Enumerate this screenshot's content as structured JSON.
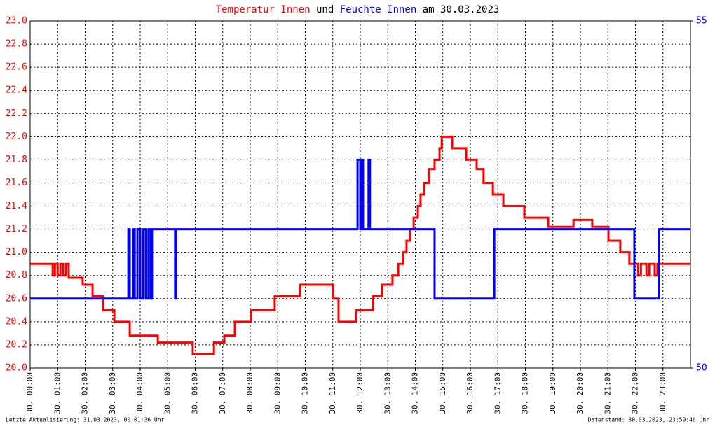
{
  "chart_data": {
    "type": "line",
    "title_connector": "und",
    "title_suffix": "am 30.03.2023",
    "footer_left": "Letzte Aktualisierung: 31.03.2023, 00:01:36 Uhr",
    "footer_right": "Datenstand: 30.03.2023, 23:59:46 Uhr",
    "grid": true,
    "xlim": [
      0,
      24
    ],
    "xticks": [
      {
        "value": 0,
        "label": "30. 00:00"
      },
      {
        "value": 1,
        "label": "30. 01:00"
      },
      {
        "value": 2,
        "label": "30. 02:00"
      },
      {
        "value": 3,
        "label": "30. 03:00"
      },
      {
        "value": 4,
        "label": "30. 04:00"
      },
      {
        "value": 5,
        "label": "30. 05:00"
      },
      {
        "value": 6,
        "label": "30. 06:00"
      },
      {
        "value": 7,
        "label": "30. 07:00"
      },
      {
        "value": 8,
        "label": "30. 08:00"
      },
      {
        "value": 9,
        "label": "30. 09:00"
      },
      {
        "value": 10,
        "label": "30. 10:00"
      },
      {
        "value": 11,
        "label": "30. 11:00"
      },
      {
        "value": 12,
        "label": "30. 12:00"
      },
      {
        "value": 13,
        "label": "30. 13:00"
      },
      {
        "value": 14,
        "label": "30. 14:00"
      },
      {
        "value": 15,
        "label": "30. 15:00"
      },
      {
        "value": 16,
        "label": "30. 16:00"
      },
      {
        "value": 17,
        "label": "30. 17:00"
      },
      {
        "value": 18,
        "label": "30. 18:00"
      },
      {
        "value": 19,
        "label": "30. 19:00"
      },
      {
        "value": 20,
        "label": "30. 20:00"
      },
      {
        "value": 21,
        "label": "30. 21:00"
      },
      {
        "value": 22,
        "label": "30. 22:00"
      },
      {
        "value": 23,
        "label": "30. 23:00"
      }
    ],
    "ylim": [
      20,
      23
    ],
    "yticks": [
      {
        "value": 20,
        "label": "20.0"
      },
      20.2,
      20.4,
      20.6,
      20.8,
      {
        "value": 21,
        "label": "21.0"
      },
      21.2,
      21.4,
      21.6,
      21.8,
      {
        "value": 22,
        "label": "22.0"
      },
      22.2,
      22.4,
      22.6,
      22.8,
      {
        "value": 23,
        "label": "23.0"
      }
    ],
    "y2lim": [
      50,
      55
    ],
    "y2ticks": [
      50,
      55
    ],
    "series": [
      {
        "name": "Temperatur Innen",
        "color": "#ff0000",
        "x": [
          0,
          0.82,
          0.82,
          0.9,
          0.9,
          1.0,
          1.0,
          1.1,
          1.1,
          1.2,
          1.2,
          1.3,
          1.3,
          1.4,
          1.4,
          1.91,
          1.91,
          2.27,
          2.27,
          2.65,
          2.65,
          3.06,
          3.06,
          3.62,
          3.62,
          4.64,
          4.64,
          5.91,
          5.91,
          6.68,
          6.68,
          7.06,
          7.06,
          7.44,
          7.44,
          8.03,
          8.03,
          8.89,
          8.89,
          9.81,
          9.81,
          11.01,
          11.01,
          11.21,
          11.21,
          11.85,
          11.85,
          12.46,
          12.46,
          12.79,
          12.79,
          13.17,
          13.17,
          13.38,
          13.38,
          13.55,
          13.55,
          13.68,
          13.68,
          13.81,
          13.81,
          13.94,
          13.94,
          14.09,
          14.09,
          14.19,
          14.19,
          14.32,
          14.32,
          14.5,
          14.5,
          14.7,
          14.7,
          14.88,
          14.88,
          14.96,
          14.96,
          15.34,
          15.34,
          15.85,
          15.85,
          16.23,
          16.23,
          16.48,
          16.48,
          16.82,
          16.82,
          17.2,
          17.2,
          17.96,
          17.96,
          18.83,
          18.83,
          19.75,
          19.75,
          20.43,
          20.43,
          21.02,
          21.02,
          21.45,
          21.45,
          21.78,
          21.78,
          22.1,
          22.1,
          22.2,
          22.2,
          22.4,
          22.4,
          22.5,
          22.5,
          22.7,
          22.7,
          22.8,
          22.8,
          24
        ],
        "values": [
          20.9,
          20.9,
          20.8,
          20.8,
          20.9,
          20.9,
          20.8,
          20.8,
          20.9,
          20.9,
          20.8,
          20.8,
          20.9,
          20.9,
          20.78,
          20.78,
          20.72,
          20.72,
          20.62,
          20.62,
          20.5,
          20.5,
          20.4,
          20.4,
          20.28,
          20.28,
          20.22,
          20.22,
          20.12,
          20.12,
          20.22,
          20.22,
          20.28,
          20.28,
          20.4,
          20.4,
          20.5,
          20.5,
          20.62,
          20.62,
          20.72,
          20.72,
          20.6,
          20.6,
          20.4,
          20.4,
          20.5,
          20.5,
          20.62,
          20.62,
          20.72,
          20.72,
          20.8,
          20.8,
          20.9,
          20.9,
          21.0,
          21.0,
          21.1,
          21.1,
          21.2,
          21.2,
          21.3,
          21.3,
          21.4,
          21.4,
          21.5,
          21.5,
          21.6,
          21.6,
          21.72,
          21.72,
          21.8,
          21.8,
          21.9,
          21.9,
          22.0,
          22.0,
          21.9,
          21.9,
          21.8,
          21.8,
          21.72,
          21.72,
          21.6,
          21.6,
          21.5,
          21.5,
          21.4,
          21.4,
          21.3,
          21.3,
          21.22,
          21.22,
          21.28,
          21.28,
          21.22,
          21.22,
          21.1,
          21.1,
          21.0,
          21.0,
          20.9,
          20.9,
          20.8,
          20.8,
          20.9,
          20.9,
          20.8,
          20.8,
          20.9,
          20.9,
          20.8,
          20.8,
          20.9,
          20.9
        ]
      },
      {
        "name": "Feuchte Innen",
        "color": "#0000ff",
        "axis": "y2",
        "x": [
          0,
          3.57,
          3.57,
          3.62,
          3.62,
          3.75,
          3.75,
          3.8,
          3.8,
          3.9,
          3.9,
          4.0,
          4.0,
          4.1,
          4.1,
          4.2,
          4.2,
          4.3,
          4.3,
          4.38,
          4.38,
          4.43,
          4.43,
          5.27,
          5.27,
          5.3,
          5.3,
          11.9,
          11.9,
          12.0,
          12.0,
          12.05,
          12.05,
          12.1,
          12.1,
          12.3,
          12.3,
          12.35,
          12.35,
          14.7,
          14.7,
          16.87,
          16.87,
          21.96,
          21.96,
          22.85,
          22.85,
          24
        ],
        "values": [
          51,
          51,
          52,
          52,
          51,
          51,
          52,
          52,
          51,
          51,
          52,
          52,
          51,
          51,
          52,
          52,
          51,
          51,
          52,
          52,
          51,
          51,
          52,
          52,
          51,
          51,
          52,
          52,
          53,
          53,
          52,
          52,
          53,
          53,
          52,
          52,
          53,
          53,
          52,
          52,
          51,
          51,
          52,
          52,
          51,
          51,
          52,
          52
        ]
      }
    ]
  }
}
